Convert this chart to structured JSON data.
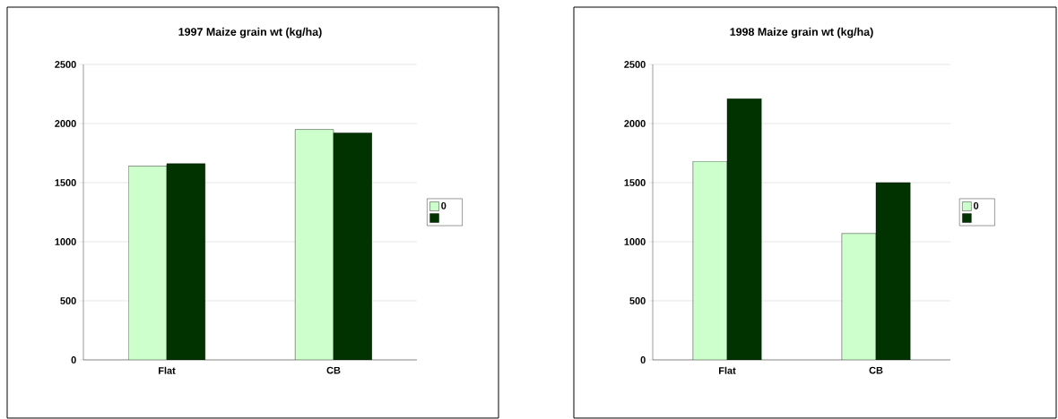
{
  "chart_data": [
    {
      "type": "bar",
      "title": "1997 Maize grain wt (kg/ha)",
      "categories": [
        "Flat",
        "CB"
      ],
      "series": [
        {
          "name": "0",
          "color": "#ccffcc",
          "values": [
            1640,
            1950
          ]
        },
        {
          "color": "#003300",
          "values": [
            1660,
            1920
          ]
        }
      ],
      "ylim": [
        0,
        2500
      ],
      "yticks": [
        0,
        500,
        1000,
        1500,
        2000,
        2500
      ],
      "grid": "y",
      "legend": "right"
    },
    {
      "type": "bar",
      "title": "1998 Maize grain wt (kg/ha)",
      "categories": [
        "Flat",
        "CB"
      ],
      "series": [
        {
          "name": "0",
          "color": "#ccffcc",
          "values": [
            1680,
            1070
          ]
        },
        {
          "color": "#003300",
          "values": [
            2210,
            1500
          ]
        }
      ],
      "ylim": [
        0,
        2500
      ],
      "yticks": [
        0,
        500,
        1000,
        1500,
        2000,
        2500
      ],
      "grid": "y",
      "legend": "right"
    }
  ]
}
